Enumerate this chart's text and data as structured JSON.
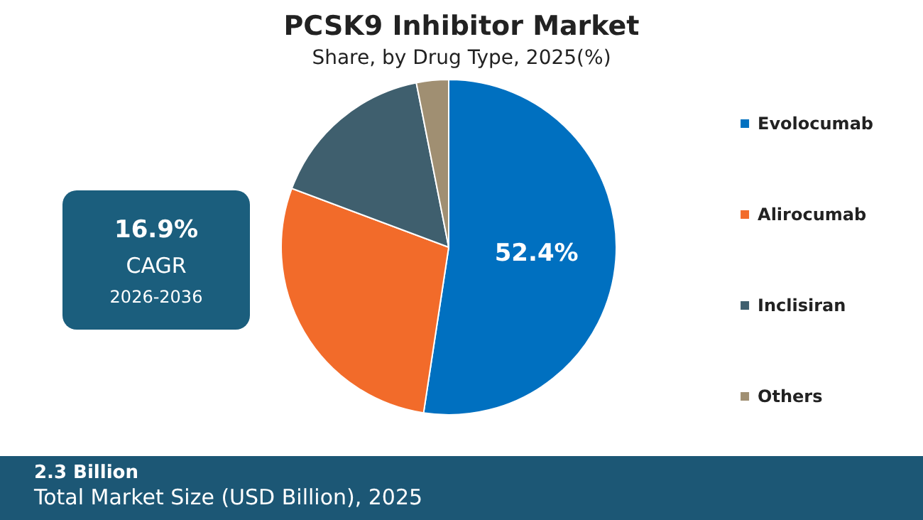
{
  "chart_data": {
    "type": "pie",
    "title": "PCSK9 Inhibitor Market",
    "subtitle": "Share, by Drug Type, 2025(%)",
    "categories": [
      "Evolocumab",
      "Alirocumab",
      "Inclisiran",
      "Others"
    ],
    "values": [
      52.4,
      28.3,
      16.2,
      3.1
    ],
    "colors": [
      "#0070c0",
      "#f26b2a",
      "#3f5f6e",
      "#a08f72"
    ],
    "value_labels": [
      "52.4%",
      null,
      null,
      null
    ],
    "legend": "right",
    "annotations": [
      "16.9%",
      "CAGR",
      "2026-2036",
      "2.3 Billion",
      "Total Market Size (USD Billion), 2025"
    ]
  }
}
